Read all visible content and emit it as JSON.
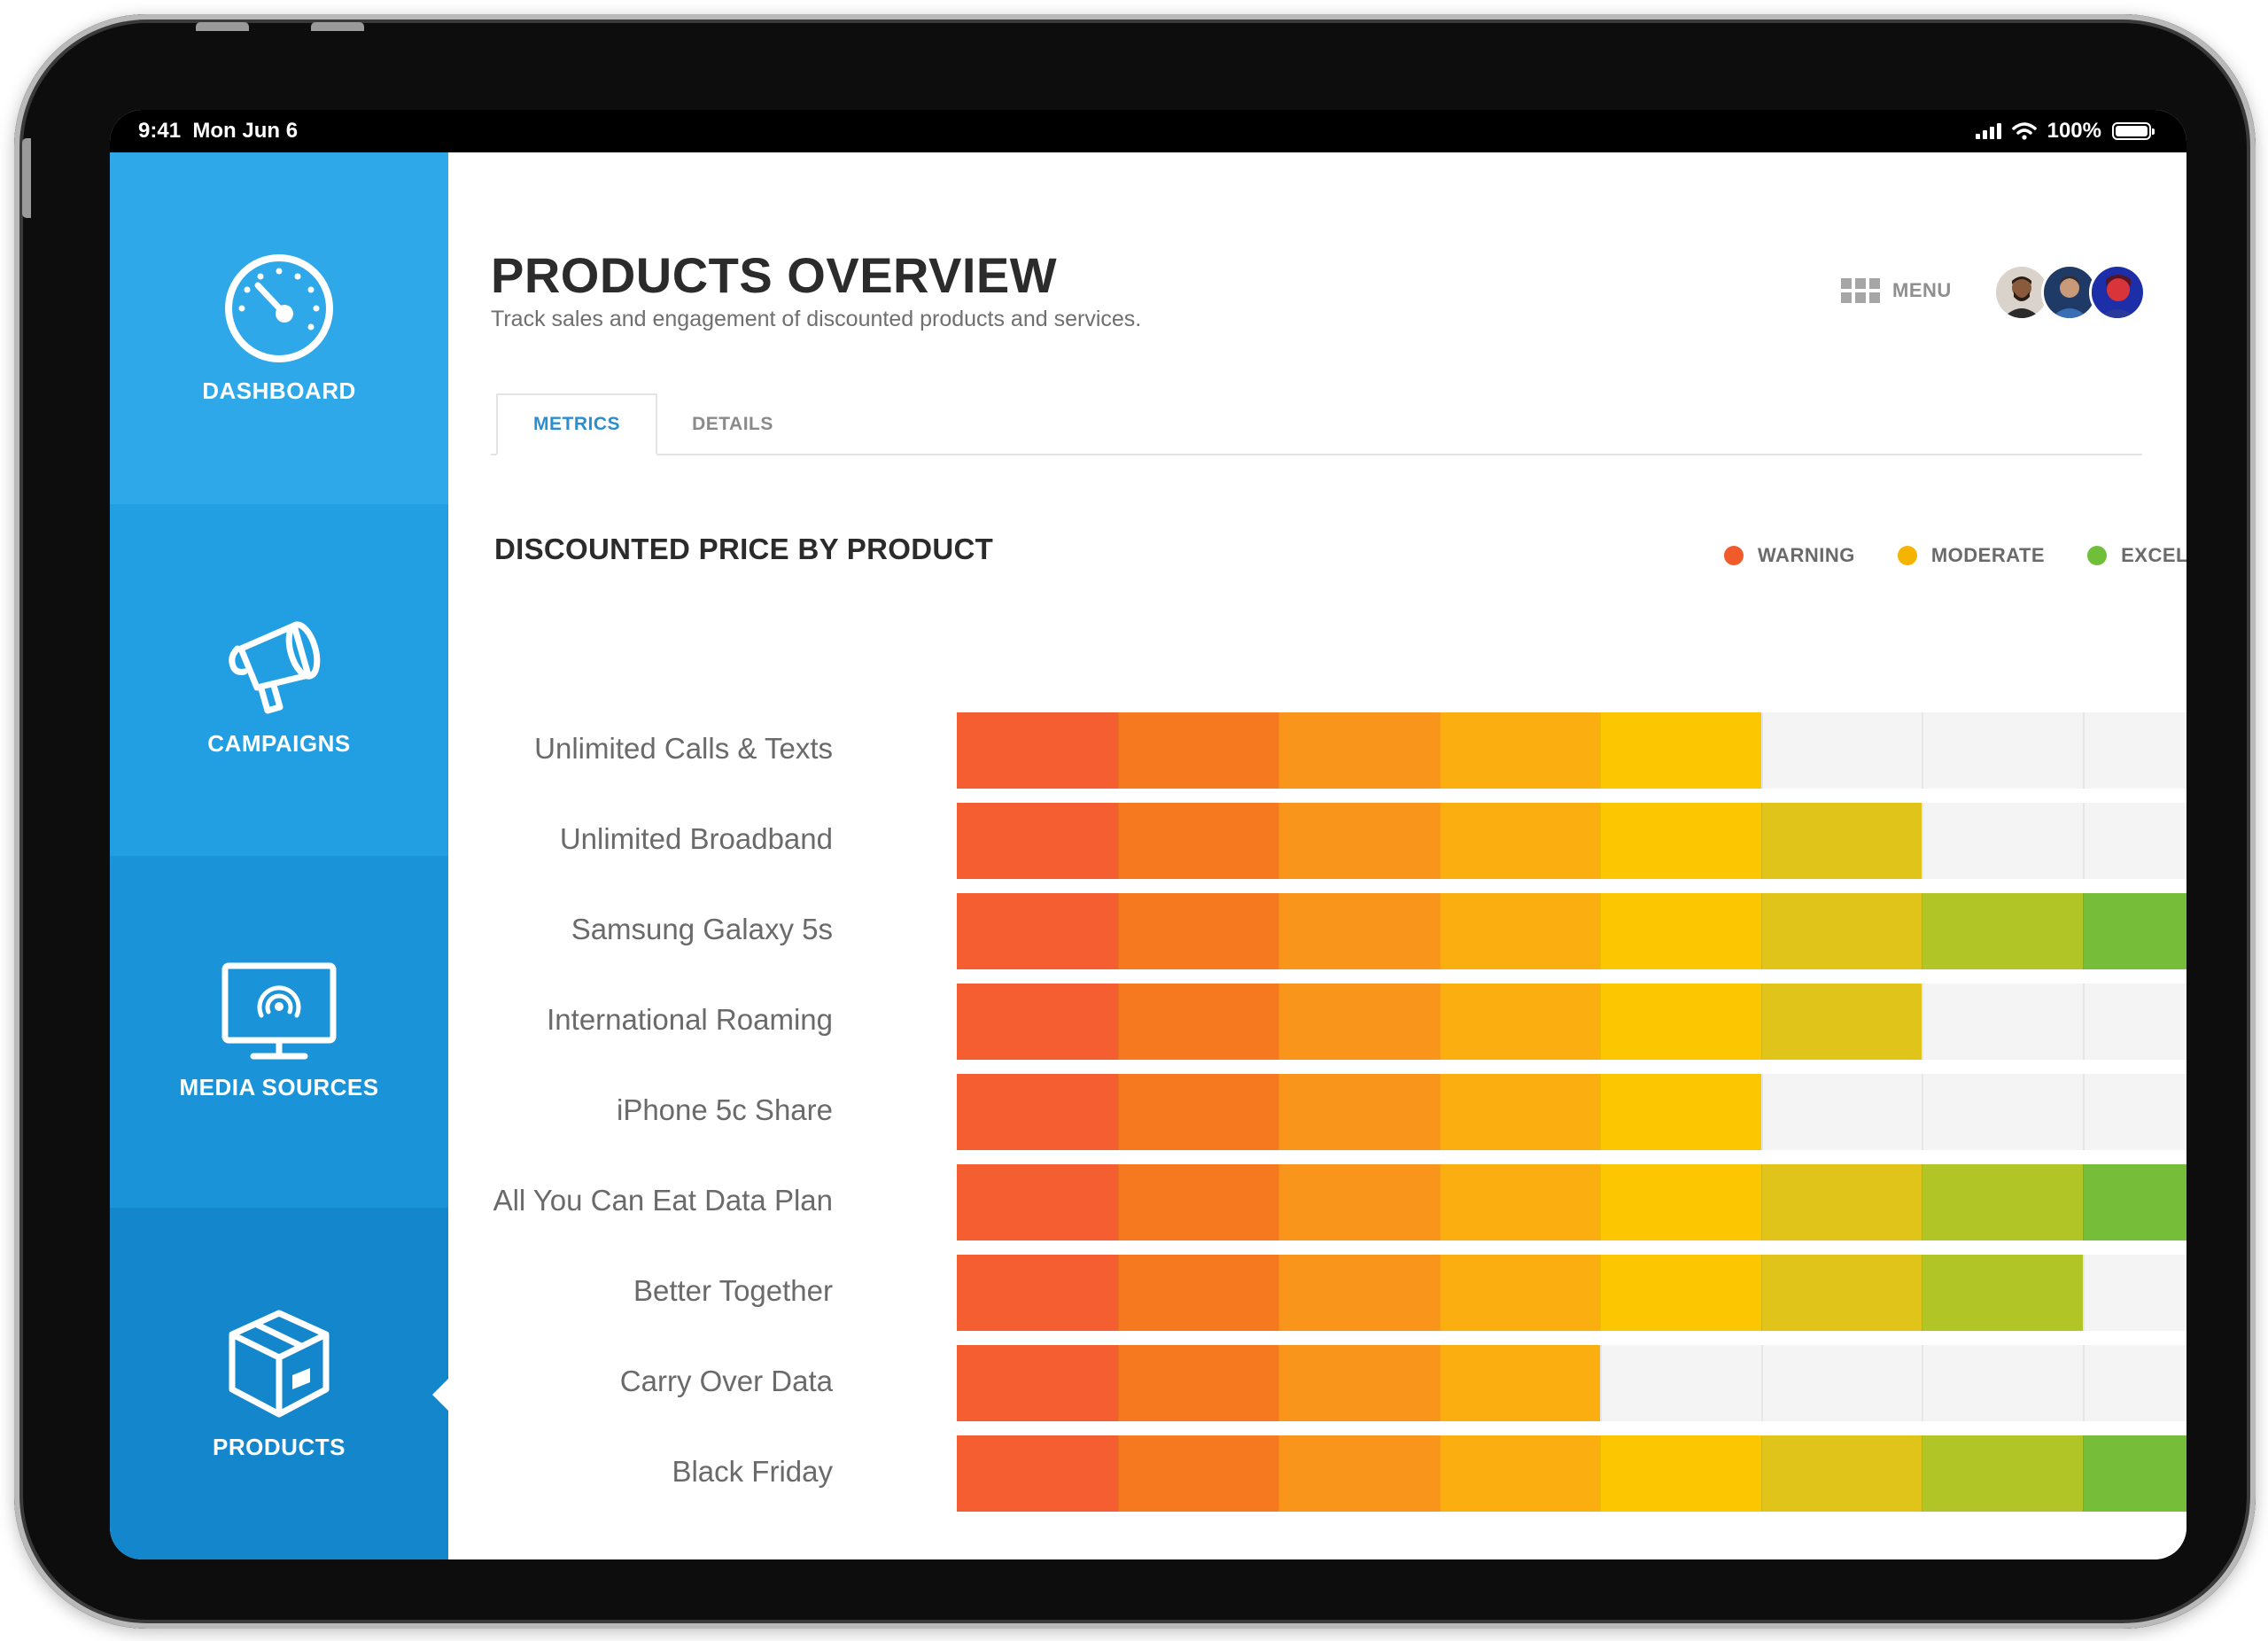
{
  "status_bar": {
    "time": "9:41",
    "date": "Mon Jun 6",
    "battery": "100%"
  },
  "sidebar": {
    "items": [
      {
        "label": "DASHBOARD",
        "icon": "speedometer-icon",
        "color": "#2EA8E8"
      },
      {
        "label": "CAMPAIGNS",
        "icon": "megaphone-icon",
        "color": "#229FE3"
      },
      {
        "label": "MEDIA SOURCES",
        "icon": "monitor-broadcast-icon",
        "color": "#1A93D9"
      },
      {
        "label": "PRODUCTS",
        "icon": "box-icon",
        "color": "#1386CC",
        "active": true
      }
    ]
  },
  "header": {
    "title": "PRODUCTS OVERVIEW",
    "subtitle": "Track sales and engagement of discounted products and services.",
    "menu_label": "MENU"
  },
  "tabs": [
    {
      "label": "METRICS",
      "active": true
    },
    {
      "label": "DETAILS",
      "active": false
    }
  ],
  "legend": [
    {
      "label": "WARNING",
      "color": "#F15A2B"
    },
    {
      "label": "MODERATE",
      "color": "#F5B400"
    },
    {
      "label": "EXCELLENT",
      "color": "#6FBF3B"
    }
  ],
  "chart_data": {
    "type": "bar",
    "title": "DISCOUNTED PRICE BY PRODUCT",
    "orientation": "horizontal",
    "max_segments": 8,
    "segment_colors": [
      "#F55E30",
      "#F7791F",
      "#F9951A",
      "#FBAE0F",
      "#FCC701",
      "#E0C41A",
      "#B1C526",
      "#76BE3A"
    ],
    "empty_color": "#F4F4F4",
    "categories": [
      "Unlimited Calls & Texts",
      "Unlimited Broadband",
      "Samsung Galaxy 5s",
      "International Roaming",
      "iPhone 5c Share",
      "All You Can Eat Data Plan",
      "Better Together",
      "Carry Over Data",
      "Black Friday"
    ],
    "values": [
      5,
      6,
      8,
      6,
      5,
      8,
      7,
      4,
      8
    ]
  }
}
